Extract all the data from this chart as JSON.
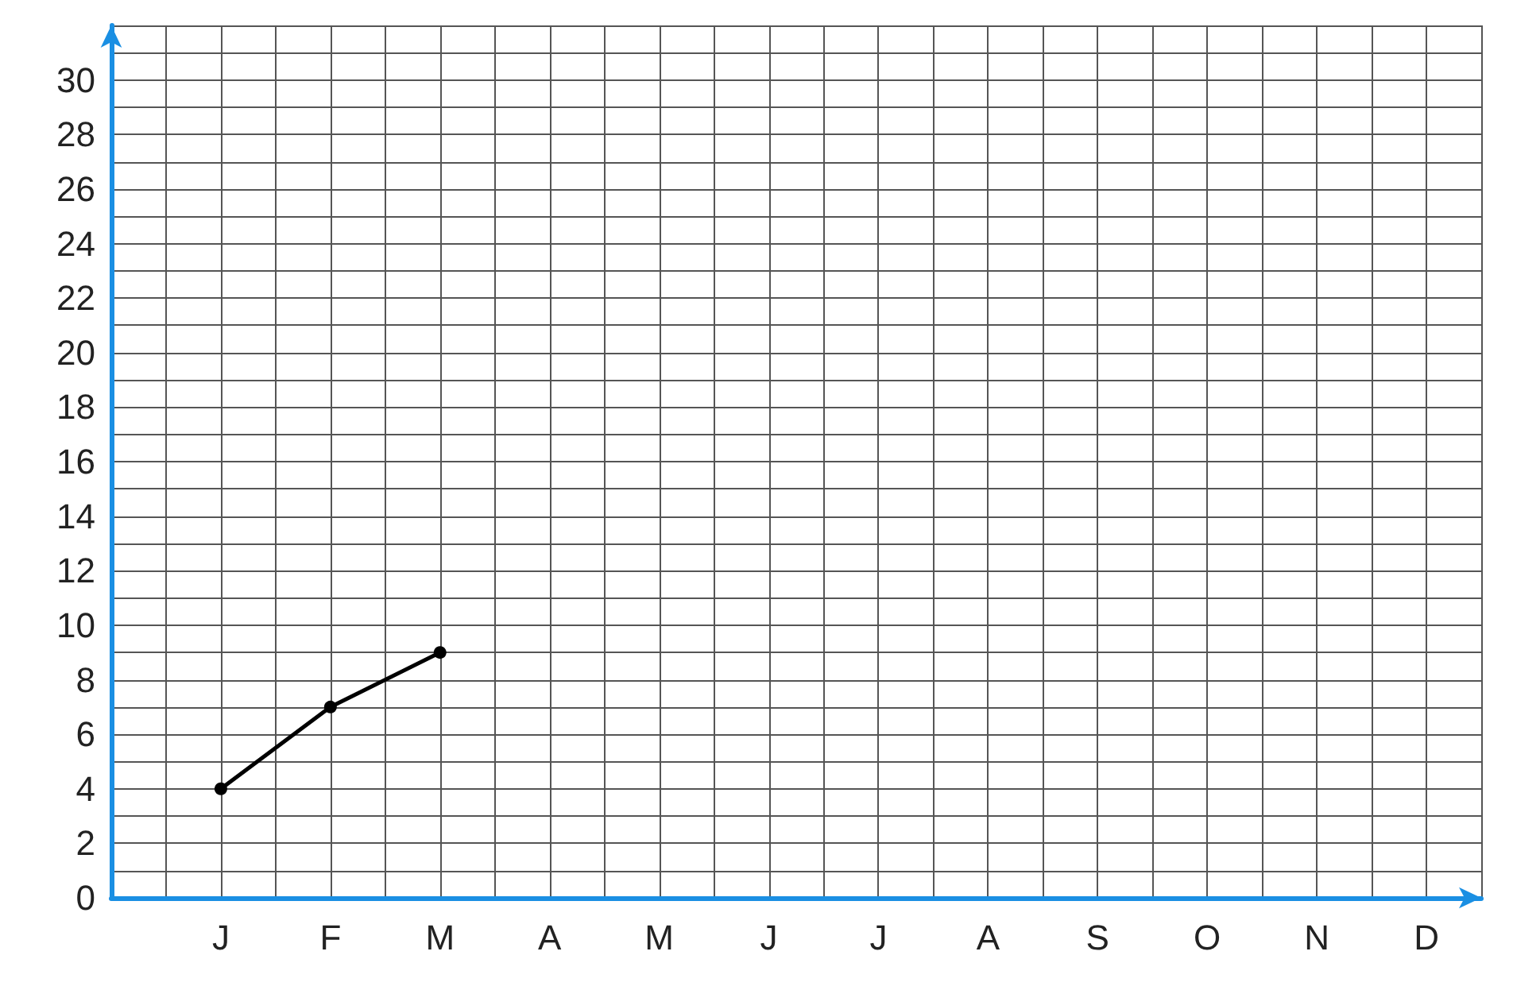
{
  "chart_data": {
    "type": "line",
    "categories": [
      "J",
      "F",
      "M",
      "A",
      "M",
      "J",
      "J",
      "A",
      "S",
      "O",
      "N",
      "D"
    ],
    "values": [
      4,
      7,
      9,
      null,
      null,
      null,
      null,
      null,
      null,
      null,
      null,
      null
    ],
    "color": "#000000",
    "ylim": [
      0,
      32
    ],
    "yticks": [
      0,
      2,
      4,
      6,
      8,
      10,
      12,
      14,
      16,
      18,
      20,
      22,
      24,
      26,
      28,
      30
    ],
    "grid": true,
    "marker": "circle",
    "line_style": "solid"
  }
}
